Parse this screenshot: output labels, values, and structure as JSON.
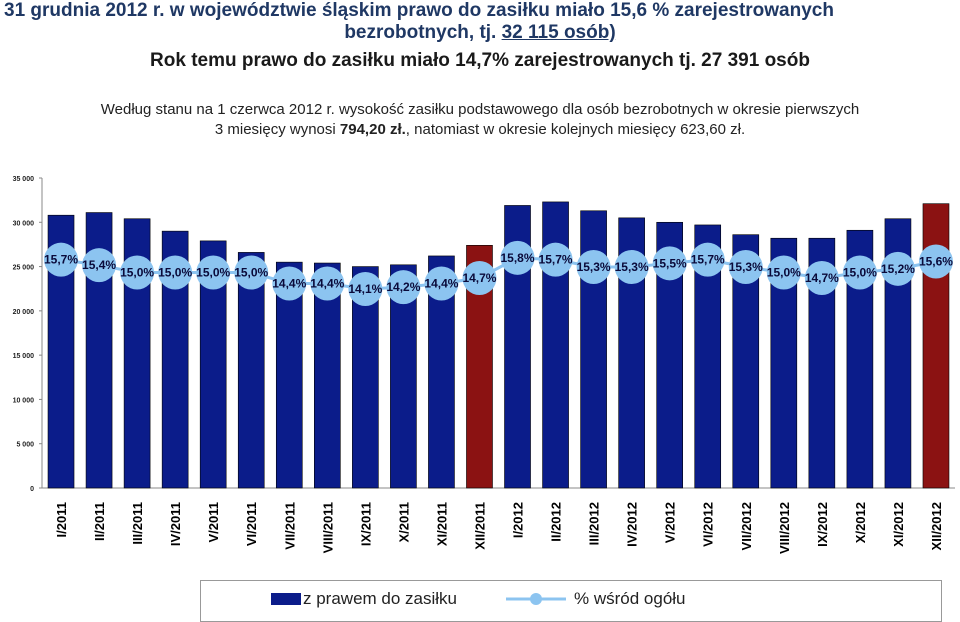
{
  "header": {
    "line1": "31 grudnia 2012 r. w województwie śląskim prawo  do zasiłku miało 15,6 % zarejestrowanych",
    "line2a": "bezrobotnych, tj. ",
    "line2b": "32 115 osób)",
    "line3": "Rok temu prawo do zasiłku miało 14,7%  zarejestrowanych tj. 27 391 osób"
  },
  "note": {
    "part1": "Według stanu na 1 czerwca 2012 r. wysokość zasiłku podstawowego dla osób bezrobotnych w okresie pierwszych",
    "part2": "3 miesięcy wynosi ",
    "amount": "794,20 zł.",
    "part3": ", natomiast w okresie kolejnych miesięcy 623,60 zł."
  },
  "legend": {
    "bars": "z prawem do zasiłku",
    "line": "% wśród ogółu"
  },
  "colors": {
    "bar": "#0B1C8A",
    "bar_highlight": "#8B1212",
    "marker": "#8CC4F0",
    "title": "#1F3864"
  },
  "chart_data": {
    "type": "bar",
    "categories": [
      "I/2011",
      "II/2011",
      "III/2011",
      "IV/2011",
      "V/2011",
      "VI/2011",
      "VII/2011",
      "VIII/2011",
      "IX/2011",
      "X/2011",
      "XI/2011",
      "XII/2011",
      "I/2012",
      "II/2012",
      "III/2012",
      "IV/2012",
      "V/2012",
      "VI/2012",
      "VII/2012",
      "VIII/2012",
      "IX/2012",
      "X/2012",
      "XI/2012",
      "XII/2012"
    ],
    "series": [
      {
        "name": "z prawem do zasiłku",
        "type": "bar",
        "values": [
          30800,
          31100,
          30400,
          29000,
          27900,
          26600,
          25500,
          25400,
          25000,
          25200,
          26200,
          27400,
          31900,
          32300,
          31300,
          30500,
          30000,
          29700,
          28600,
          28200,
          28200,
          29100,
          30400,
          32100
        ],
        "highlight": [
          "XII/2011",
          "XII/2012"
        ]
      },
      {
        "name": "% wśród ogółu",
        "type": "line",
        "values": [
          15.7,
          15.4,
          15.0,
          15.0,
          15.0,
          15.0,
          14.4,
          14.4,
          14.1,
          14.2,
          14.4,
          14.7,
          15.8,
          15.7,
          15.3,
          15.3,
          15.5,
          15.7,
          15.3,
          15.0,
          14.7,
          15.0,
          15.2,
          15.6
        ],
        "labels": [
          "15,7%",
          "15,4%",
          "15,0%",
          "15,0%",
          "15,0%",
          "15,0%",
          "14,4%",
          "14,4%",
          "14,1%",
          "14,2%",
          "14,4%",
          "14,7%",
          "15,8%",
          "15,7%",
          "15,3%",
          "15,3%",
          "15,5%",
          "15,7%",
          "15,3%",
          "15,0%",
          "14,7%",
          "15,0%",
          "15,2%",
          "15,6%"
        ]
      }
    ],
    "yticks": [
      "0",
      "5 000",
      "10 000",
      "15 000",
      "20 000",
      "25 000",
      "30 000",
      "35 000"
    ],
    "ylim": [
      0,
      35000
    ]
  }
}
